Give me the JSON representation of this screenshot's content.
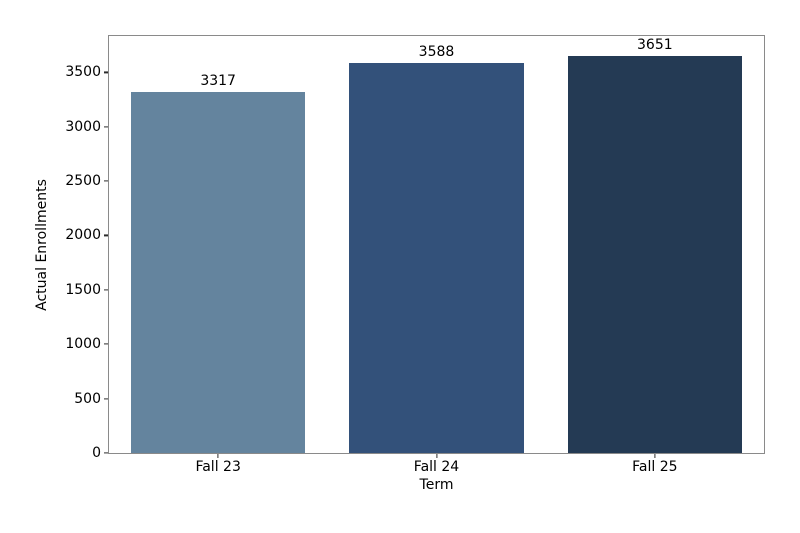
{
  "chart_data": {
    "type": "bar",
    "title": "",
    "xlabel": "Term",
    "ylabel": "Actual Enrollments",
    "categories": [
      "Fall 23",
      "Fall 24",
      "Fall 25"
    ],
    "values": [
      3317,
      3588,
      3651
    ],
    "bar_colors": [
      "#64849E",
      "#33517A",
      "#243A54"
    ],
    "bar_width_fraction": 0.8,
    "ylim": [
      0,
      3834
    ],
    "yticks": [
      0,
      500,
      1000,
      1500,
      2000,
      2500,
      3000,
      3500
    ],
    "grid": false,
    "legend": "none",
    "background_color": "#ffffff",
    "spine_color": "#8a8a8a",
    "text_color": "#000000"
  }
}
